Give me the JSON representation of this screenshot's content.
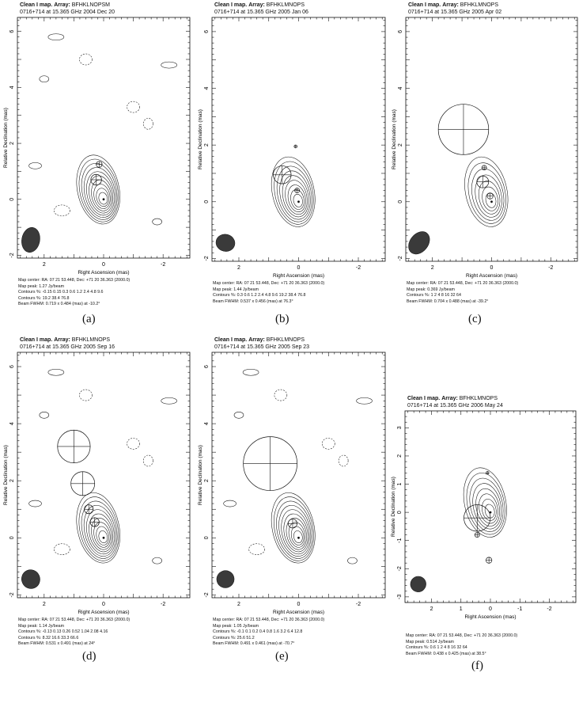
{
  "figure": {
    "axis_labels": {
      "x": "Right Ascension   (mas)",
      "y": "Relative Declination   (mas)"
    },
    "colors": {
      "ink": "#111111",
      "beam_fill": "#3a3a3a",
      "background": "#ffffff"
    },
    "panels": [
      {
        "id": "a",
        "caption": "(a)",
        "title_prefix": "Clean I map.",
        "array_label": "Array:",
        "array": "BFHKLNOPSM",
        "subtitle": "0716+714 at 15.365 GHz 2004 Dec 20",
        "xticks": [
          2,
          0,
          -2
        ],
        "yticks": [
          6,
          4,
          2,
          0,
          -2
        ],
        "xlim": [
          2.9,
          -2.9
        ],
        "ylim": [
          -2.1,
          6.5
        ],
        "info": [
          "Map center:  RA: 07 21 53.448,  Dec: +71 20 36.363 (2000.0)",
          "Map peak: 1.27 Jy/beam",
          "Contours %: -0.15 0.15 0.3 0.6 1.2 2.4 4.8 9.6",
          "Contours %: 19.2 38.4 76.8",
          "Beam FWHM: 0.719 x 0.484 (mas) at -10.2°"
        ],
        "contours": [
          -0.15,
          0.15,
          0.3,
          0.6,
          1.2,
          2.4,
          4.8,
          9.6,
          19.2,
          38.4,
          76.8
        ],
        "beam": {
          "major": 0.719,
          "minor": 0.484,
          "pa": -10.2
        }
      },
      {
        "id": "b",
        "caption": "(b)",
        "title_prefix": "Clean I map.",
        "array_label": "Array:",
        "array": "BFHKLMNOPS",
        "subtitle": "0716+714 at 15.365 GHz 2005 Jan 06",
        "xticks": [
          2,
          0,
          -2
        ],
        "yticks": [
          6,
          4,
          2,
          0,
          -2
        ],
        "xlim": [
          2.9,
          -2.9
        ],
        "ylim": [
          -2.1,
          6.5
        ],
        "info": [
          "Map center:  RA: 07 21 53.448,  Dec: +71 20 36.363 (2000.0)",
          "Map peak: 1.44 Jy/beam",
          "Contours %: 0.3 0.6 1.2 2.4 4.8 9.6 19.2 38.4 76.8",
          "Beam FWHM: 0.537 x 0.456 (mas) at 76.3°"
        ],
        "contours": [
          0.3,
          0.6,
          1.2,
          2.4,
          4.8,
          9.6,
          19.2,
          38.4,
          76.8
        ],
        "beam": {
          "major": 0.537,
          "minor": 0.456,
          "pa": 76.3
        }
      },
      {
        "id": "c",
        "caption": "(c)",
        "title_prefix": "Clean I map.",
        "array_label": "Array:",
        "array": "BFHKLMNOPS",
        "subtitle": "0716+714 at 15.365 GHz 2005 Apr 02",
        "xticks": [
          2,
          0,
          -2
        ],
        "yticks": [
          6,
          4,
          2,
          0,
          -2
        ],
        "xlim": [
          2.9,
          -2.9
        ],
        "ylim": [
          -2.1,
          6.5
        ],
        "info": [
          "Map center:  RA: 07 21 53.448,  Dec: +71 20 36.363 (2000.0)",
          "Map peak: 0.369 Jy/beam",
          "Contours %: 1 2 4 8 16 32 64",
          "Beam FWHM: 0.704 x 0.488 (mas) at -39.2°"
        ],
        "contours": [
          1,
          2,
          4,
          8,
          16,
          32,
          64
        ],
        "beam": {
          "major": 0.704,
          "minor": 0.488,
          "pa": -39.2
        }
      },
      {
        "id": "d",
        "caption": "(d)",
        "title_prefix": "Clean I map.",
        "array_label": "Array:",
        "array": "BFHKLMNOPS",
        "subtitle": "0716+714 at 15.365 GHz 2005 Sep 16",
        "xticks": [
          2,
          0,
          -2
        ],
        "yticks": [
          6,
          4,
          2,
          0,
          -2
        ],
        "xlim": [
          2.9,
          -2.9
        ],
        "ylim": [
          -2.1,
          6.5
        ],
        "info": [
          "Map center:  RA: 07 21 53.448,  Dec: +71 20 36.363 (2000.0)",
          "Map peak: 1.14 Jy/beam",
          "Contours %: -0.13 0.13 0.26 0.52 1.04 2.08 4.16",
          "Contours %: 8.32 16.6 33.3 66.6",
          "Beam FWHM: 0.531 x 0.491 (mas) at 24°"
        ],
        "contours": [
          -0.13,
          0.13,
          0.26,
          0.52,
          1.04,
          2.08,
          4.16,
          8.32,
          16.6,
          33.3,
          66.6
        ],
        "beam": {
          "major": 0.531,
          "minor": 0.491,
          "pa": 24
        }
      },
      {
        "id": "e",
        "caption": "(e)",
        "title_prefix": "Clean I map.",
        "array_label": "Array:",
        "array": "BFHKLMNOPS",
        "subtitle": "0716+714 at 15.365 GHz 2005 Sep 23",
        "xticks": [
          2,
          0,
          -2
        ],
        "yticks": [
          6,
          4,
          2,
          0,
          -2
        ],
        "xlim": [
          2.9,
          -2.9
        ],
        "ylim": [
          -2.1,
          6.5
        ],
        "info": [
          "Map center:  RA: 07 21 53.448,  Dec: +71 20 36.363 (2000.0)",
          "Map peak: 1.05 Jy/beam",
          "Contours %: -0.1 0.1 0.2 0.4 0.8 1.6 3.2 6.4 12.8",
          "Contours %: 25.6 51.2",
          "Beam FWHM: 0.491 x 0.461 (mas) at -70.7°"
        ],
        "contours": [
          -0.1,
          0.1,
          0.2,
          0.4,
          0.8,
          1.6,
          3.2,
          6.4,
          12.8,
          25.6,
          51.2
        ],
        "beam": {
          "major": 0.491,
          "minor": 0.461,
          "pa": -70.7
        }
      },
      {
        "id": "f",
        "caption": "(f)",
        "title_prefix": "Clean I map.",
        "array_label": "Array:",
        "array": "BFHKLMNOPS",
        "subtitle": "0716+714 at 15.365 GHz 2006 May 24",
        "xticks": [
          2,
          1,
          0,
          -1,
          -2
        ],
        "yticks": [
          3,
          2,
          1,
          0,
          -1,
          -2,
          -3
        ],
        "xlim": [
          2.9,
          -2.9
        ],
        "ylim": [
          -3.2,
          3.6
        ],
        "info": [
          "Map center:  RA: 07 21 53.448,  Dec: +71 20 36.363 (2000.0)",
          "Map peak: 0.514 Jy/beam",
          "Contours %: 0.6 1 2 4 8 16 32 64",
          "Beam FWHM: 0.438 x 0.425 (mas) at 38.5°"
        ],
        "contours": [
          0.6,
          1,
          2,
          4,
          8,
          16,
          32,
          64
        ],
        "beam": {
          "major": 0.438,
          "minor": 0.425,
          "pa": 38.5
        }
      }
    ]
  }
}
